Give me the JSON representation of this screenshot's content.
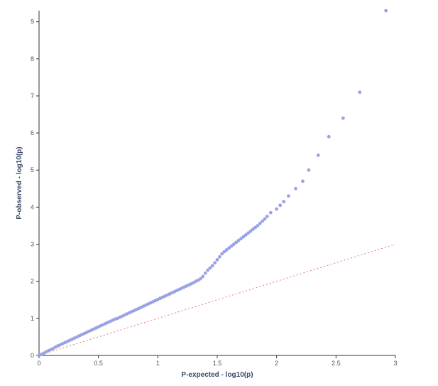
{
  "chart_data": {
    "type": "scatter",
    "title": "",
    "xlabel": "P-expected - log10(p)",
    "ylabel": "P-observed - log10(p)",
    "xlim": [
      0,
      3
    ],
    "ylim": [
      0,
      9.3
    ],
    "x_ticks": [
      "0",
      "0.5",
      "1",
      "1.5",
      "2",
      "2.5",
      "3"
    ],
    "y_ticks": [
      "0",
      "1",
      "2",
      "3",
      "4",
      "5",
      "6",
      "7",
      "8",
      "9"
    ],
    "grid": false,
    "legend": "none",
    "reference_line": {
      "from": [
        0,
        0
      ],
      "to": [
        3,
        3
      ],
      "style": "dotted",
      "color": "#e07a7a"
    },
    "point_color": "#9aa2e6",
    "series": [
      {
        "x": [
          0.0,
          0.02,
          0.04,
          0.06,
          0.08,
          0.1,
          0.12,
          0.14,
          0.16,
          0.18,
          0.2,
          0.22,
          0.24,
          0.26,
          0.28,
          0.3,
          0.32,
          0.34,
          0.36,
          0.38,
          0.4,
          0.42,
          0.44,
          0.46,
          0.48,
          0.5,
          0.52,
          0.54,
          0.56,
          0.58,
          0.6,
          0.62,
          0.64,
          0.66,
          0.68,
          0.7,
          0.72,
          0.74,
          0.76,
          0.78,
          0.8,
          0.82,
          0.84,
          0.86,
          0.88,
          0.9,
          0.92,
          0.94,
          0.96,
          0.98,
          1.0,
          1.02,
          1.04,
          1.06,
          1.08,
          1.1,
          1.12,
          1.14,
          1.16,
          1.18,
          1.2,
          1.22,
          1.24,
          1.26,
          1.28,
          1.3,
          1.32,
          1.34,
          1.36,
          1.38,
          1.4,
          1.42,
          1.44,
          1.46,
          1.48,
          1.5,
          1.52,
          1.54,
          1.56,
          1.58,
          1.6,
          1.62,
          1.64,
          1.66,
          1.68,
          1.7,
          1.72,
          1.74,
          1.76,
          1.78,
          1.8,
          1.82,
          1.84,
          1.86,
          1.88,
          1.9,
          1.92,
          1.95,
          2.0,
          2.03,
          2.06,
          2.1,
          2.16,
          2.22,
          2.27,
          2.35,
          2.44,
          2.56,
          2.7,
          2.92
        ],
        "y": [
          0.0,
          0.03,
          0.06,
          0.1,
          0.13,
          0.16,
          0.19,
          0.23,
          0.26,
          0.29,
          0.32,
          0.35,
          0.38,
          0.41,
          0.44,
          0.47,
          0.5,
          0.53,
          0.56,
          0.59,
          0.62,
          0.65,
          0.68,
          0.71,
          0.74,
          0.77,
          0.8,
          0.83,
          0.86,
          0.89,
          0.92,
          0.95,
          0.98,
          1.0,
          1.03,
          1.06,
          1.09,
          1.12,
          1.15,
          1.18,
          1.21,
          1.24,
          1.27,
          1.3,
          1.33,
          1.36,
          1.39,
          1.42,
          1.45,
          1.48,
          1.51,
          1.54,
          1.57,
          1.6,
          1.63,
          1.66,
          1.69,
          1.72,
          1.75,
          1.78,
          1.81,
          1.84,
          1.87,
          1.9,
          1.93,
          1.96,
          2.0,
          2.03,
          2.07,
          2.13,
          2.22,
          2.3,
          2.36,
          2.42,
          2.5,
          2.58,
          2.66,
          2.74,
          2.8,
          2.85,
          2.9,
          2.95,
          3.0,
          3.05,
          3.1,
          3.15,
          3.2,
          3.25,
          3.3,
          3.35,
          3.4,
          3.45,
          3.5,
          3.56,
          3.62,
          3.68,
          3.75,
          3.85,
          3.95,
          4.05,
          4.15,
          4.3,
          4.5,
          4.7,
          5.0,
          5.4,
          5.9,
          6.4,
          7.1,
          9.3
        ]
      }
    ]
  }
}
